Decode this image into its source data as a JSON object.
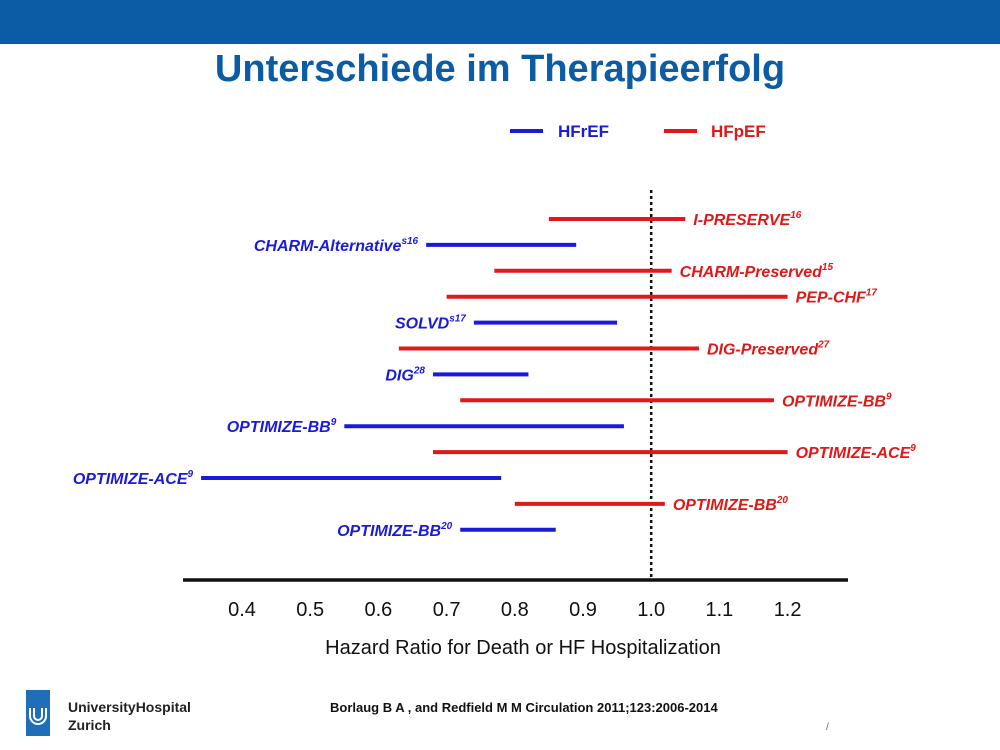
{
  "title": "Unterschiede im Therapieerfolg",
  "citation": "Borlaug B A , and Redfield M M Circulation 2011;123:2006-2014",
  "institution": {
    "line1": "UniversityHospital",
    "line2": "Zurich"
  },
  "page_mark": "/",
  "colors": {
    "topbar": "#0b5ca4",
    "title": "#0b5ca4",
    "HFrEF": "#1a1adc",
    "HFpEF": "#e01818"
  },
  "chart_data": {
    "type": "forest",
    "xlabel": "Hazard Ratio for Death or HF Hospitalization",
    "ylabel": "",
    "xlim": [
      0.35,
      1.28
    ],
    "ticks": [
      "0.4",
      "0.5",
      "0.6",
      "0.7",
      "0.8",
      "0.9",
      "1.0",
      "1.1",
      "1.2"
    ],
    "reference_line": 1.0,
    "legend": {
      "placement": "top",
      "entries": [
        {
          "name": "HFrEF",
          "color": "#1a1adc"
        },
        {
          "name": "HFpEF",
          "color": "#e01818"
        }
      ]
    },
    "series": [
      {
        "name": "HFpEF",
        "study": "I-PRESERVE",
        "ref": "16",
        "lo": 0.85,
        "hi": 1.05
      },
      {
        "name": "HFrEF",
        "study": "CHARM-Alternative",
        "ref": "s16",
        "lo": 0.67,
        "hi": 0.89
      },
      {
        "name": "HFpEF",
        "study": "CHARM-Preserved",
        "ref": "15",
        "lo": 0.77,
        "hi": 1.03
      },
      {
        "name": "HFpEF",
        "study": "PEP-CHF",
        "ref": "17",
        "lo": 0.7,
        "hi": 1.2
      },
      {
        "name": "HFrEF",
        "study": "SOLVD",
        "ref": "s17",
        "lo": 0.74,
        "hi": 0.95
      },
      {
        "name": "HFpEF",
        "study": "DIG-Preserved",
        "ref": "27",
        "lo": 0.63,
        "hi": 1.07
      },
      {
        "name": "HFrEF",
        "study": "DIG",
        "ref": "28",
        "lo": 0.68,
        "hi": 0.82
      },
      {
        "name": "HFpEF",
        "study": "OPTIMIZE-BB",
        "ref": "9",
        "lo": 0.72,
        "hi": 1.18
      },
      {
        "name": "HFrEF",
        "study": "OPTIMIZE-BB",
        "ref": "9",
        "lo": 0.55,
        "hi": 0.96
      },
      {
        "name": "HFpEF",
        "study": "OPTIMIZE-ACE",
        "ref": "9",
        "lo": 0.68,
        "hi": 1.2
      },
      {
        "name": "HFrEF",
        "study": "OPTIMIZE-ACE",
        "ref": "9",
        "lo": 0.34,
        "hi": 0.78
      },
      {
        "name": "HFpEF",
        "study": "OPTIMIZE-BB",
        "ref": "20",
        "lo": 0.8,
        "hi": 1.02
      },
      {
        "name": "HFrEF",
        "study": "OPTIMIZE-BB",
        "ref": "20",
        "lo": 0.72,
        "hi": 0.86
      }
    ]
  }
}
